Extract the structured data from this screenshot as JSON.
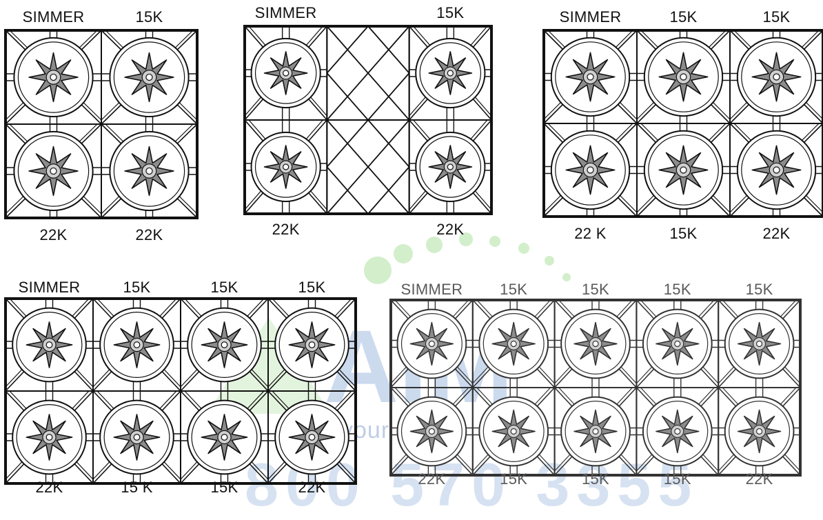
{
  "watermark": {
    "brand": "AIM",
    "subtitle": "your",
    "phone": "800 570 3355",
    "dot_color": "#7fcf6a",
    "text_color": "#4a7ec4"
  },
  "colors": {
    "burner_fill": "#8c8c8c",
    "line": "#111111"
  },
  "icons": {
    "burner": "burner-icon",
    "griddle_crosshatch": "crosshatch-icon"
  },
  "configurations": [
    {
      "columns": [
        "burner",
        "burner"
      ],
      "top_labels": [
        "SIMMER",
        "15K"
      ],
      "bottom_labels": [
        "22K",
        "22K"
      ]
    },
    {
      "columns": [
        "burner",
        "crosshatch",
        "burner"
      ],
      "top_labels": [
        "SIMMER",
        "",
        "15K"
      ],
      "bottom_labels": [
        "22K",
        "",
        "22K"
      ]
    },
    {
      "columns": [
        "burner",
        "burner",
        "burner"
      ],
      "top_labels": [
        "SIMMER",
        "15K",
        "15K"
      ],
      "bottom_labels": [
        "22 K",
        "15K",
        "22K"
      ]
    },
    {
      "columns": [
        "burner",
        "burner",
        "burner",
        "burner"
      ],
      "top_labels": [
        "SIMMER",
        "15K",
        "15K",
        "15K"
      ],
      "bottom_labels": [
        "22K",
        "15 K",
        "15K",
        "22K"
      ]
    },
    {
      "columns": [
        "burner",
        "burner",
        "burner",
        "burner",
        "burner"
      ],
      "top_labels": [
        "SIMMER",
        "15K",
        "15K",
        "15K",
        "15K"
      ],
      "bottom_labels": [
        "22K",
        "15K",
        "15K",
        "15K",
        "22K"
      ]
    }
  ]
}
